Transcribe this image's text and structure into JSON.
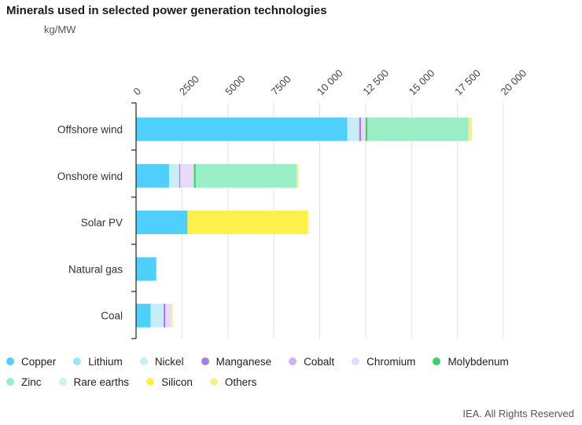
{
  "title": "Minerals used in selected power generation technologies",
  "unit_label": "kg/MW",
  "credit": "IEA. All Rights Reserved",
  "chart_data": {
    "type": "bar",
    "orientation": "horizontal",
    "stacked": true,
    "categories": [
      "Offshore wind",
      "Onshore wind",
      "Solar PV",
      "Natural gas",
      "Coal"
    ],
    "xlim": [
      0,
      20000
    ],
    "x_ticks": [
      0,
      2500,
      5000,
      7500,
      10000,
      12500,
      15000,
      17500,
      20000
    ],
    "x_tick_labels": [
      "0",
      "2500",
      "5000",
      "7500",
      "10 000",
      "12 500",
      "15 000",
      "17 500",
      "20 000"
    ],
    "grid": "vertical",
    "legend_position": "bottom",
    "series": [
      {
        "name": "Copper",
        "color": "#4fd0fc",
        "values": [
          11500,
          1800,
          2800,
          1100,
          800
        ]
      },
      {
        "name": "Lithium",
        "color": "#9ee3f7",
        "values": [
          0,
          0,
          0,
          0,
          0
        ]
      },
      {
        "name": "Nickel",
        "color": "#c6eef9",
        "values": [
          650,
          550,
          0,
          0,
          700
        ]
      },
      {
        "name": "Manganese",
        "color": "#a67fe3",
        "values": [
          100,
          50,
          0,
          0,
          100
        ]
      },
      {
        "name": "Cobalt",
        "color": "#cdb3f2",
        "values": [
          0,
          0,
          0,
          0,
          0
        ]
      },
      {
        "name": "Chromium",
        "color": "#e6dbfa",
        "values": [
          250,
          750,
          0,
          0,
          300
        ]
      },
      {
        "name": "Molybdenum",
        "color": "#3ad06a",
        "values": [
          100,
          100,
          0,
          0,
          0
        ]
      },
      {
        "name": "Zinc",
        "color": "#9aeec6",
        "values": [
          5500,
          5500,
          0,
          0,
          0
        ]
      },
      {
        "name": "Rare earths",
        "color": "#c9f5de",
        "values": [
          0,
          0,
          0,
          0,
          0
        ]
      },
      {
        "name": "Silicon",
        "color": "#fdf04a",
        "values": [
          0,
          0,
          6550,
          0,
          0
        ]
      },
      {
        "name": "Others",
        "color": "#f8ee98",
        "values": [
          200,
          100,
          50,
          0,
          100
        ]
      }
    ]
  }
}
